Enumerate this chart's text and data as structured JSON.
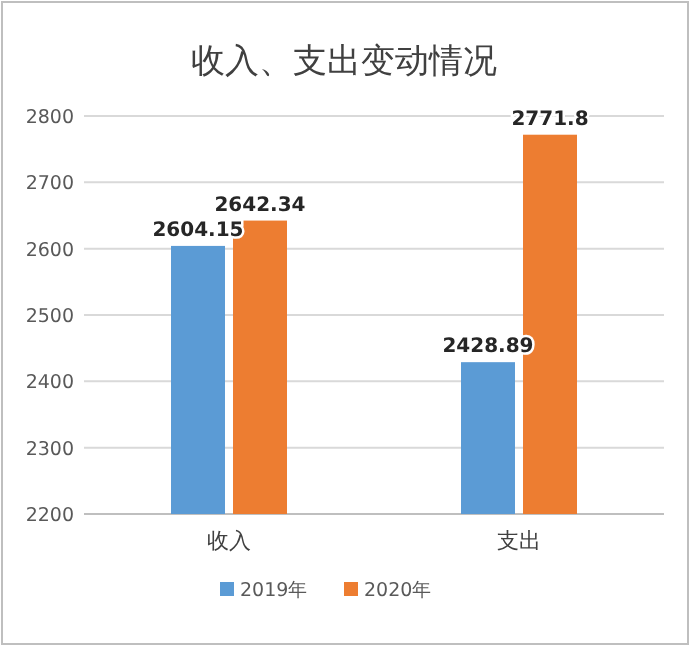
{
  "chart_data": {
    "type": "bar",
    "title": "收入、支出变动情况",
    "categories": [
      "收入",
      "支出"
    ],
    "series": [
      {
        "name": "2019年",
        "color": "#5b9bd5",
        "values": [
          2604.15,
          2428.89
        ]
      },
      {
        "name": "2020年",
        "color": "#ed7d31",
        "values": [
          2642.34,
          2771.8
        ]
      }
    ],
    "ylim": [
      2200,
      2800
    ],
    "yticks": [
      2200,
      2300,
      2400,
      2500,
      2600,
      2700,
      2800
    ],
    "grid": "y",
    "legend": "bottom",
    "data_labels": true
  }
}
